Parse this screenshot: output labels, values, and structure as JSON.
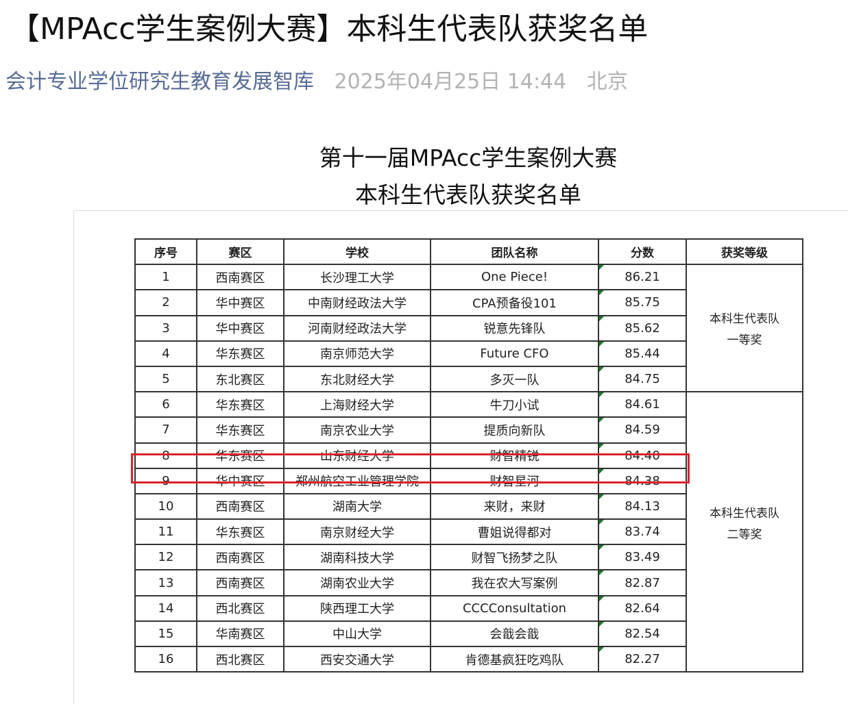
{
  "article": {
    "title": "【MPAcc学生案例大赛】本科生代表队获奖名单",
    "author": "会计专业学位研究生教育发展智库",
    "date": "2025年04月25日 14:44",
    "location": "北京"
  },
  "image": {
    "title_line1": "第十一届MPAcc学生案例大赛",
    "title_line2": "本科生代表队获奖名单",
    "headers": [
      "序号",
      "赛区",
      "学校",
      "团队名称",
      "分数",
      "获奖等级"
    ],
    "rows": [
      [
        "1",
        "西南赛区",
        "长沙理工大学",
        "One Piece!",
        "86.21"
      ],
      [
        "2",
        "华中赛区",
        "中南财经政法大学",
        "CPA预备役101",
        "85.75"
      ],
      [
        "3",
        "华中赛区",
        "河南财经政法大学",
        "锐意先锋队",
        "85.62"
      ],
      [
        "4",
        "华东赛区",
        "南京师范大学",
        "Future CFO",
        "85.44"
      ],
      [
        "5",
        "东北赛区",
        "东北财经大学",
        "多灭一队",
        "84.75"
      ],
      [
        "6",
        "华东赛区",
        "上海财经大学",
        "牛刀小试",
        "84.61"
      ],
      [
        "7",
        "华东赛区",
        "南京农业大学",
        "提质向新队",
        "84.59"
      ],
      [
        "8",
        "华东赛区",
        "山东财经大学",
        "财智精锐",
        "84.40"
      ],
      [
        "9",
        "华中赛区",
        "郑州航空工业管理学院",
        "财智星河",
        "84.38"
      ],
      [
        "10",
        "西南赛区",
        "湖南大学",
        "来财，来财",
        "84.13"
      ],
      [
        "11",
        "华东赛区",
        "南京财经大学",
        "曹姐说得都对",
        "83.74"
      ],
      [
        "12",
        "西南赛区",
        "湖南科技大学",
        "财智飞扬梦之队",
        "83.49"
      ],
      [
        "13",
        "西南赛区",
        "湖南农业大学",
        "我在农大写案例",
        "82.87"
      ],
      [
        "14",
        "西北赛区",
        "陕西理工大学",
        "CCCConsultation",
        "82.64"
      ],
      [
        "15",
        "华南赛区",
        "中山大学",
        "会戠会戠",
        "82.54"
      ],
      [
        "16",
        "西北赛区",
        "西安交通大学",
        "肯德基疯狂吃鸡队",
        "82.27"
      ]
    ],
    "awards": [
      {
        "line1": "本科生代表队",
        "line2": "一等奖"
      },
      {
        "line1": "本科生代表队",
        "line2": "二等奖"
      }
    ],
    "highlight_color": "#d9232d"
  }
}
